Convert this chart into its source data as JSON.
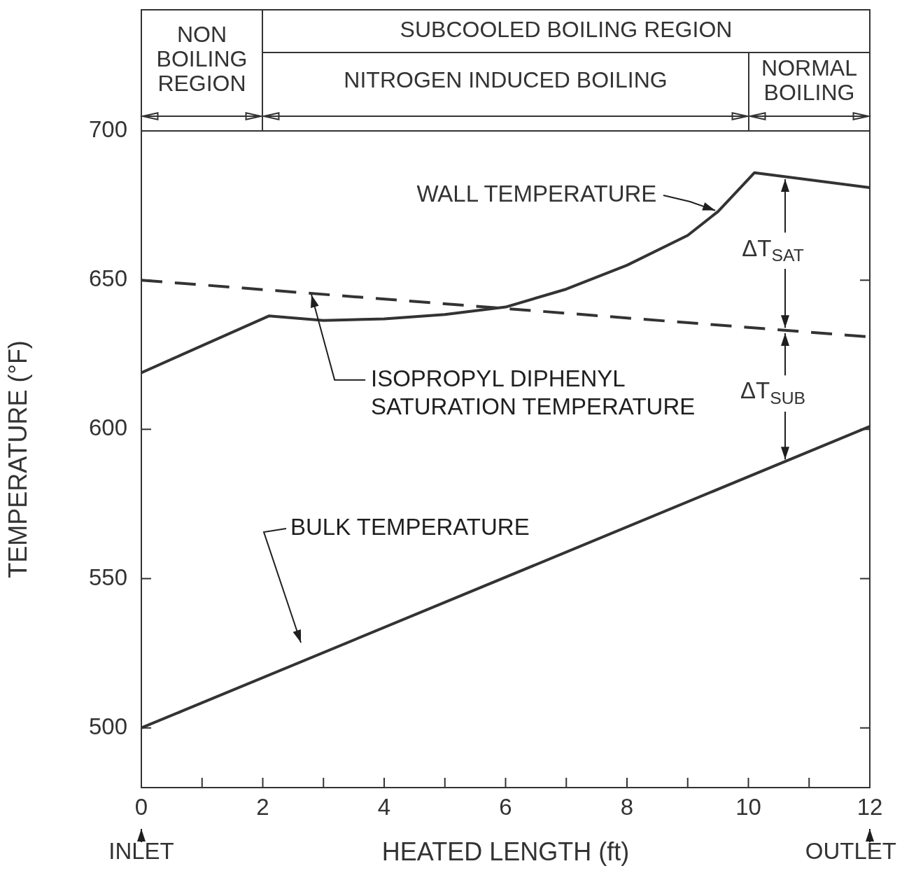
{
  "chart_data": {
    "type": "line",
    "xlabel": "HEATED LENGTH (ft)",
    "ylabel": "TEMPERATURE (°F)",
    "xlim": [
      0,
      12
    ],
    "ylim": [
      480,
      700
    ],
    "xticks": [
      0,
      {
        "value": 1,
        "label": null
      },
      2,
      {
        "value": 3,
        "label": null
      },
      4,
      {
        "value": 5,
        "label": null
      },
      6,
      {
        "value": 7,
        "label": null
      },
      8,
      {
        "value": 9,
        "label": null
      },
      10,
      {
        "value": 11,
        "label": null
      },
      12
    ],
    "yticks": [
      500,
      550,
      600,
      650,
      700
    ],
    "series": [
      {
        "color": "#333333",
        "x": [
          0,
          2.1,
          3,
          4,
          5,
          6,
          7,
          8,
          9,
          9.5,
          10.1,
          12
        ],
        "values": [
          619,
          638,
          636.5,
          637,
          638.5,
          641,
          647,
          655,
          665,
          673,
          686,
          681
        ]
      },
      {
        "color": "#333333",
        "line_style": "dashed",
        "x": [
          0,
          12
        ],
        "values": [
          650,
          631
        ]
      },
      {
        "color": "#333333",
        "x": [
          0,
          12
        ],
        "values": [
          500,
          601
        ]
      }
    ],
    "annotations": [
      "NON BOILING REGION",
      "SUBCOOLED BOILING REGION",
      "NITROGEN INDUCED BOILING",
      "NORMAL BOILING",
      {
        "text": "WALL TEMPERATURE",
        "x": 9.5,
        "y": 673
      },
      {
        "text": "ISOPROPYL DIPHENYL SATURATION TEMPERATURE",
        "x": 2.8,
        "y": 645.5
      },
      "BULK TEMPERATURE",
      {
        "text": "ΔT$_{SAT}$",
        "x": 10.6,
        "y": 684.5
      },
      {
        "text": "ΔT$_{SUB}$",
        "x": 10.6,
        "y": 633
      },
      "INLET",
      "OUTLET"
    ],
    "grid": false,
    "legend": false
  }
}
